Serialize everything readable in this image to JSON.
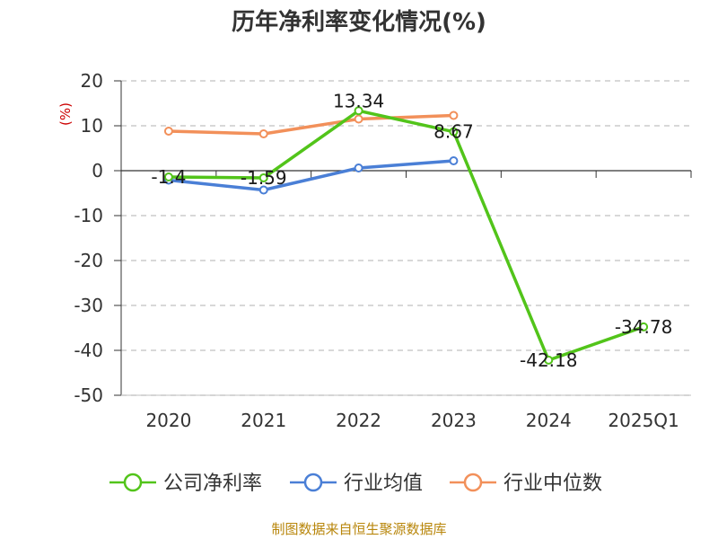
{
  "chart_data": {
    "type": "line",
    "title": "历年净利率变化情况(%)",
    "ylabel": "(%)",
    "categories": [
      "2020",
      "2021",
      "2022",
      "2023",
      "2024",
      "2025Q1"
    ],
    "ylim": [
      -50,
      20
    ],
    "yticks": [
      20,
      10,
      0,
      -10,
      -20,
      -30,
      -40,
      -50
    ],
    "grid": true,
    "legend_position": "bottom",
    "series": [
      {
        "name": "公司净利率",
        "color": "#52c41a",
        "values": [
          -1.4,
          -1.59,
          13.34,
          8.67,
          -42.18,
          -34.78
        ],
        "labels": [
          "-1.4",
          "-1.59",
          "13.34",
          "8.67",
          "-42.18",
          "-34.78"
        ]
      },
      {
        "name": "行业均值",
        "color": "#4a7fd6",
        "values": [
          -2.1,
          -4.3,
          0.6,
          2.2,
          null,
          null
        ]
      },
      {
        "name": "行业中位数",
        "color": "#f2905a",
        "values": [
          8.8,
          8.2,
          11.5,
          12.3,
          null,
          null
        ]
      }
    ]
  },
  "unit_color": "#cc0000",
  "footer": "制图数据来自恒生聚源数据库"
}
